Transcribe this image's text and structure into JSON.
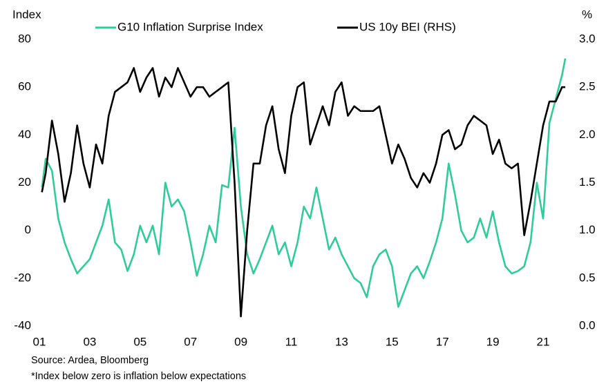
{
  "chart_data": {
    "type": "line",
    "left_axis_label": "Index",
    "right_axis_label": "%",
    "source": "Source: Ardea, Bloomberg",
    "note": "*Index below zero is inflation below expectations",
    "x": [
      2001.1,
      2001.25,
      2001.5,
      2001.75,
      2002,
      2002.25,
      2002.5,
      2002.75,
      2003,
      2003.25,
      2003.5,
      2003.75,
      2004,
      2004.25,
      2004.5,
      2004.75,
      2005,
      2005.25,
      2005.5,
      2005.75,
      2006,
      2006.25,
      2006.5,
      2006.75,
      2007,
      2007.25,
      2007.5,
      2007.75,
      2008,
      2008.25,
      2008.5,
      2008.75,
      2009,
      2009.25,
      2009.5,
      2009.75,
      2010,
      2010.25,
      2010.5,
      2010.75,
      2011,
      2011.25,
      2011.5,
      2011.75,
      2012,
      2012.25,
      2012.5,
      2012.75,
      2013,
      2013.25,
      2013.5,
      2013.75,
      2014,
      2014.25,
      2014.5,
      2014.75,
      2015,
      2015.25,
      2015.5,
      2015.75,
      2016,
      2016.25,
      2016.5,
      2016.75,
      2017,
      2017.25,
      2017.5,
      2017.75,
      2018,
      2018.25,
      2018.5,
      2018.75,
      2019,
      2019.25,
      2019.5,
      2019.75,
      2020,
      2020.25,
      2020.5,
      2020.75,
      2021,
      2021.25,
      2021.5,
      2021.75,
      2021.88
    ],
    "series": [
      {
        "name": "G10 Inflation Surprise Index",
        "color": "#2ecc9a",
        "axis": "y",
        "values": [
          18,
          30,
          25,
          5,
          -5,
          -12,
          -18,
          -15,
          -12,
          -5,
          2,
          13,
          -5,
          -8,
          -17,
          -10,
          2,
          -5,
          2,
          -10,
          20,
          10,
          13,
          8,
          -5,
          -19,
          -10,
          2,
          -5,
          19,
          18,
          43,
          10,
          -10,
          -18,
          -12,
          -5,
          2,
          -10,
          -5,
          -15,
          -5,
          10,
          5,
          18,
          5,
          -8,
          -3,
          -10,
          -15,
          -20,
          -22,
          -28,
          -15,
          -10,
          -8,
          -15,
          -32,
          -25,
          -18,
          -15,
          -20,
          -13,
          -5,
          5,
          28,
          15,
          0,
          -5,
          -3,
          5,
          -3,
          8,
          -5,
          -15,
          -18,
          -17,
          -15,
          -5,
          20,
          5,
          45,
          55,
          65,
          72
        ]
      },
      {
        "name": "US 10y BEI (RHS)",
        "color": "#000000",
        "axis": "y2",
        "values": [
          1.4,
          1.6,
          2.15,
          1.8,
          1.3,
          1.6,
          2.1,
          1.7,
          1.45,
          1.9,
          1.7,
          2.2,
          2.45,
          2.5,
          2.55,
          2.7,
          2.45,
          2.6,
          2.7,
          2.4,
          2.6,
          2.5,
          2.7,
          2.55,
          2.4,
          2.5,
          2.5,
          2.4,
          2.45,
          2.5,
          2.55,
          1.5,
          0.1,
          1.0,
          1.7,
          1.7,
          2.1,
          2.3,
          1.85,
          1.6,
          2.2,
          2.5,
          2.55,
          1.9,
          2.1,
          2.3,
          2.1,
          2.45,
          2.55,
          2.2,
          2.3,
          2.25,
          2.25,
          2.25,
          2.3,
          2.0,
          1.7,
          1.9,
          1.75,
          1.55,
          1.45,
          1.6,
          1.5,
          1.7,
          2.0,
          2.05,
          1.85,
          1.9,
          2.1,
          2.2,
          2.15,
          2.1,
          1.8,
          1.95,
          1.7,
          1.65,
          1.7,
          0.95,
          1.3,
          1.7,
          2.1,
          2.35,
          2.35,
          2.5,
          2.5
        ]
      }
    ],
    "xlim": [
      2001,
      2022
    ],
    "xticks": [
      {
        "value": 2001,
        "label": "01"
      },
      {
        "value": 2003,
        "label": "03"
      },
      {
        "value": 2005,
        "label": "05"
      },
      {
        "value": 2007,
        "label": "07"
      },
      {
        "value": 2009,
        "label": "09"
      },
      {
        "value": 2011,
        "label": "11"
      },
      {
        "value": 2013,
        "label": "13"
      },
      {
        "value": 2015,
        "label": "15"
      },
      {
        "value": 2017,
        "label": "17"
      },
      {
        "value": 2019,
        "label": "19"
      },
      {
        "value": 2021,
        "label": "21"
      }
    ],
    "ylim": [
      -40,
      80
    ],
    "yticks": [
      80,
      60,
      40,
      20,
      0,
      -20,
      -40
    ],
    "y2lim": [
      0,
      3
    ],
    "y2ticks": [
      {
        "value": 3,
        "label": "3.0"
      },
      2.5,
      {
        "value": 2,
        "label": "2.0"
      },
      1.5,
      {
        "value": 1,
        "label": "1.0"
      },
      0.5,
      {
        "value": 0,
        "label": "0.0"
      }
    ],
    "grid": false,
    "legend": "top"
  }
}
